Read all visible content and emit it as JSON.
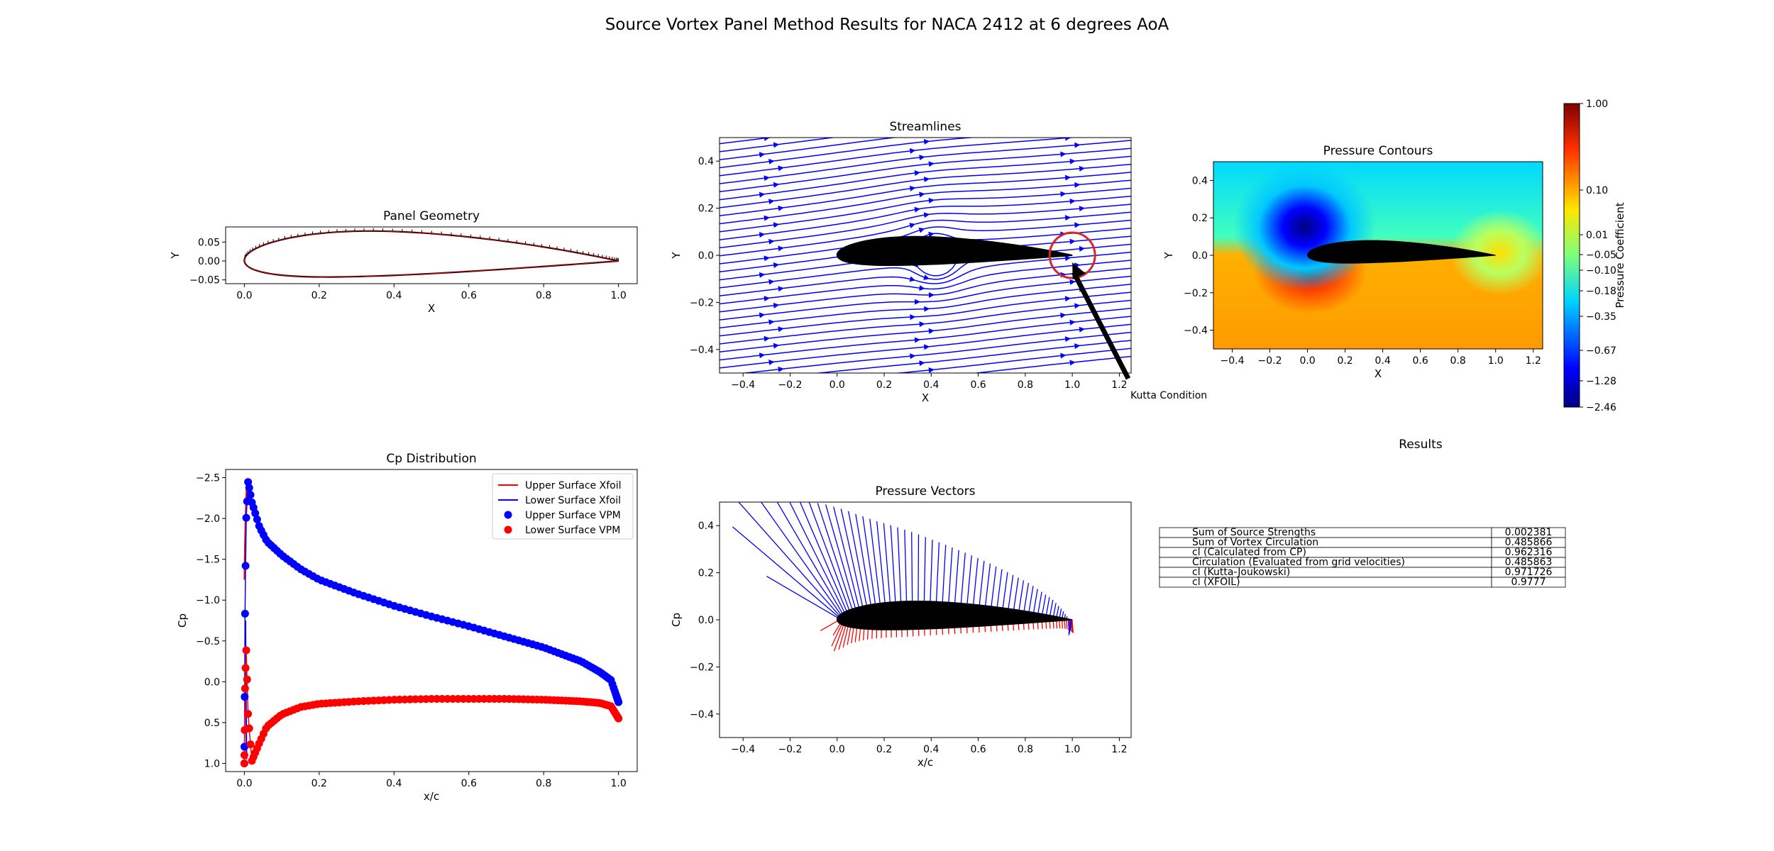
{
  "figure": {
    "suptitle": "Source Vortex Panel Method Results for NACA 2412 at 6 degrees AoA"
  },
  "colors": {
    "upper": "#0000ff",
    "lower": "#ff0000",
    "body": "#000000",
    "kutta_circle": "#d62728"
  },
  "chart_data": [
    {
      "id": "panel_geometry",
      "type": "line",
      "title": "Panel Geometry",
      "xlabel": "X",
      "ylabel": "Y",
      "xlim": [
        -0.05,
        1.05
      ],
      "ylim": [
        -0.06,
        0.09
      ],
      "xticks": [
        0.0,
        0.2,
        0.4,
        0.6,
        0.8,
        1.0
      ],
      "yticks": [
        -0.05,
        0.0,
        0.05
      ],
      "series": [
        {
          "name": "Airfoil surface",
          "note": "NACA 2412 panel outline with panel normal ticks"
        }
      ]
    },
    {
      "id": "streamlines",
      "type": "line",
      "title": "Streamlines",
      "xlabel": "X",
      "ylabel": "Y",
      "xlim": [
        -0.5,
        1.25
      ],
      "ylim": [
        -0.5,
        0.5
      ],
      "xticks": [
        -0.4,
        -0.2,
        0.0,
        0.2,
        0.4,
        0.6,
        0.8,
        1.0,
        1.2
      ],
      "yticks": [
        -0.4,
        -0.2,
        0.0,
        0.2,
        0.4
      ],
      "annotation": {
        "text": "Kutta Condition",
        "point": [
          1.0,
          0.0
        ],
        "text_at": [
          1.25,
          -0.59
        ]
      }
    },
    {
      "id": "pressure_contours",
      "type": "heatmap",
      "title": "Pressure Contours",
      "xlabel": "X",
      "ylabel": "Y",
      "xlim": [
        -0.5,
        1.25
      ],
      "ylim": [
        -0.5,
        0.5
      ],
      "xticks": [
        -0.4,
        -0.2,
        0.0,
        0.2,
        0.4,
        0.6,
        0.8,
        1.0,
        1.2
      ],
      "yticks": [
        -0.4,
        -0.2,
        0.0,
        0.2,
        0.4
      ],
      "colorbar": {
        "label": "Pressure Coefficient",
        "ticks": [
          "1.00",
          "0.10",
          "0.01",
          "-0.05",
          "-0.10",
          "-0.18",
          "-0.35",
          "-0.67",
          "-1.28",
          "-2.46"
        ]
      }
    },
    {
      "id": "cp_distribution",
      "type": "line",
      "title": "Cp Distribution",
      "xlabel": "x/c",
      "ylabel": "Cp",
      "xlim": [
        -0.05,
        1.05
      ],
      "ylim": [
        1.1,
        -2.6
      ],
      "xticks": [
        0.0,
        0.2,
        0.4,
        0.6,
        0.8,
        1.0
      ],
      "yticks": [
        -2.5,
        -2.0,
        -1.5,
        -1.0,
        -0.5,
        0.0,
        0.5,
        1.0
      ],
      "legend": [
        "Upper Surface Xfoil",
        "Lower Surface Xfoil",
        "Upper Surface VPM",
        "Lower Surface VPM"
      ],
      "series": [
        {
          "name": "Upper Surface VPM",
          "x": [
            0.0,
            0.002,
            0.005,
            0.01,
            0.02,
            0.04,
            0.06,
            0.1,
            0.15,
            0.2,
            0.3,
            0.4,
            0.5,
            0.6,
            0.7,
            0.8,
            0.9,
            0.95,
            0.98,
            1.0
          ],
          "y": [
            1.0,
            -1.0,
            -2.0,
            -2.45,
            -2.2,
            -1.9,
            -1.72,
            -1.55,
            -1.38,
            -1.25,
            -1.08,
            -0.93,
            -0.8,
            -0.68,
            -0.55,
            -0.42,
            -0.25,
            -0.12,
            -0.02,
            0.25
          ]
        },
        {
          "name": "Lower Surface VPM",
          "x": [
            0.0,
            0.002,
            0.005,
            0.01,
            0.02,
            0.04,
            0.06,
            0.1,
            0.15,
            0.2,
            0.3,
            0.4,
            0.5,
            0.6,
            0.7,
            0.8,
            0.9,
            0.95,
            0.98,
            1.0
          ],
          "y": [
            1.0,
            0.0,
            -0.4,
            0.4,
            0.97,
            0.75,
            0.55,
            0.4,
            0.31,
            0.27,
            0.24,
            0.22,
            0.21,
            0.21,
            0.21,
            0.22,
            0.24,
            0.26,
            0.3,
            0.45
          ]
        },
        {
          "name": "Upper Surface Xfoil",
          "x": [
            0.0,
            0.001,
            0.003,
            0.006
          ],
          "y": [
            -1.25,
            -1.6,
            -2.0,
            -2.45
          ]
        },
        {
          "name": "Lower Surface Xfoil",
          "x": [
            0.003,
            0.004,
            0.006
          ],
          "y": [
            -0.75,
            0.1,
            0.95
          ]
        }
      ]
    },
    {
      "id": "pressure_vectors",
      "type": "line",
      "title": "Pressure Vectors",
      "xlabel": "x/c",
      "ylabel": "Cp",
      "xlim": [
        -0.5,
        1.25
      ],
      "ylim": [
        -0.5,
        0.5
      ],
      "xticks": [
        -0.4,
        -0.2,
        0.0,
        0.2,
        0.4,
        0.6,
        0.8,
        1.0,
        1.2
      ],
      "yticks": [
        -0.4,
        -0.2,
        0.0,
        0.2,
        0.4
      ]
    },
    {
      "id": "results",
      "type": "table",
      "title": "Results",
      "rows": [
        [
          "Sum of Source Strengths",
          "0.002381"
        ],
        [
          "Sum of Vortex Circulation",
          "0.485866"
        ],
        [
          "cl (Calculated from CP)",
          "0.962316"
        ],
        [
          "Circulation (Evaluated from grid velocities)",
          "0.485863"
        ],
        [
          "cl (Kutta-Joukowski)",
          "0.971726"
        ],
        [
          "cl (XFOIL)",
          "0.9777"
        ]
      ]
    }
  ]
}
